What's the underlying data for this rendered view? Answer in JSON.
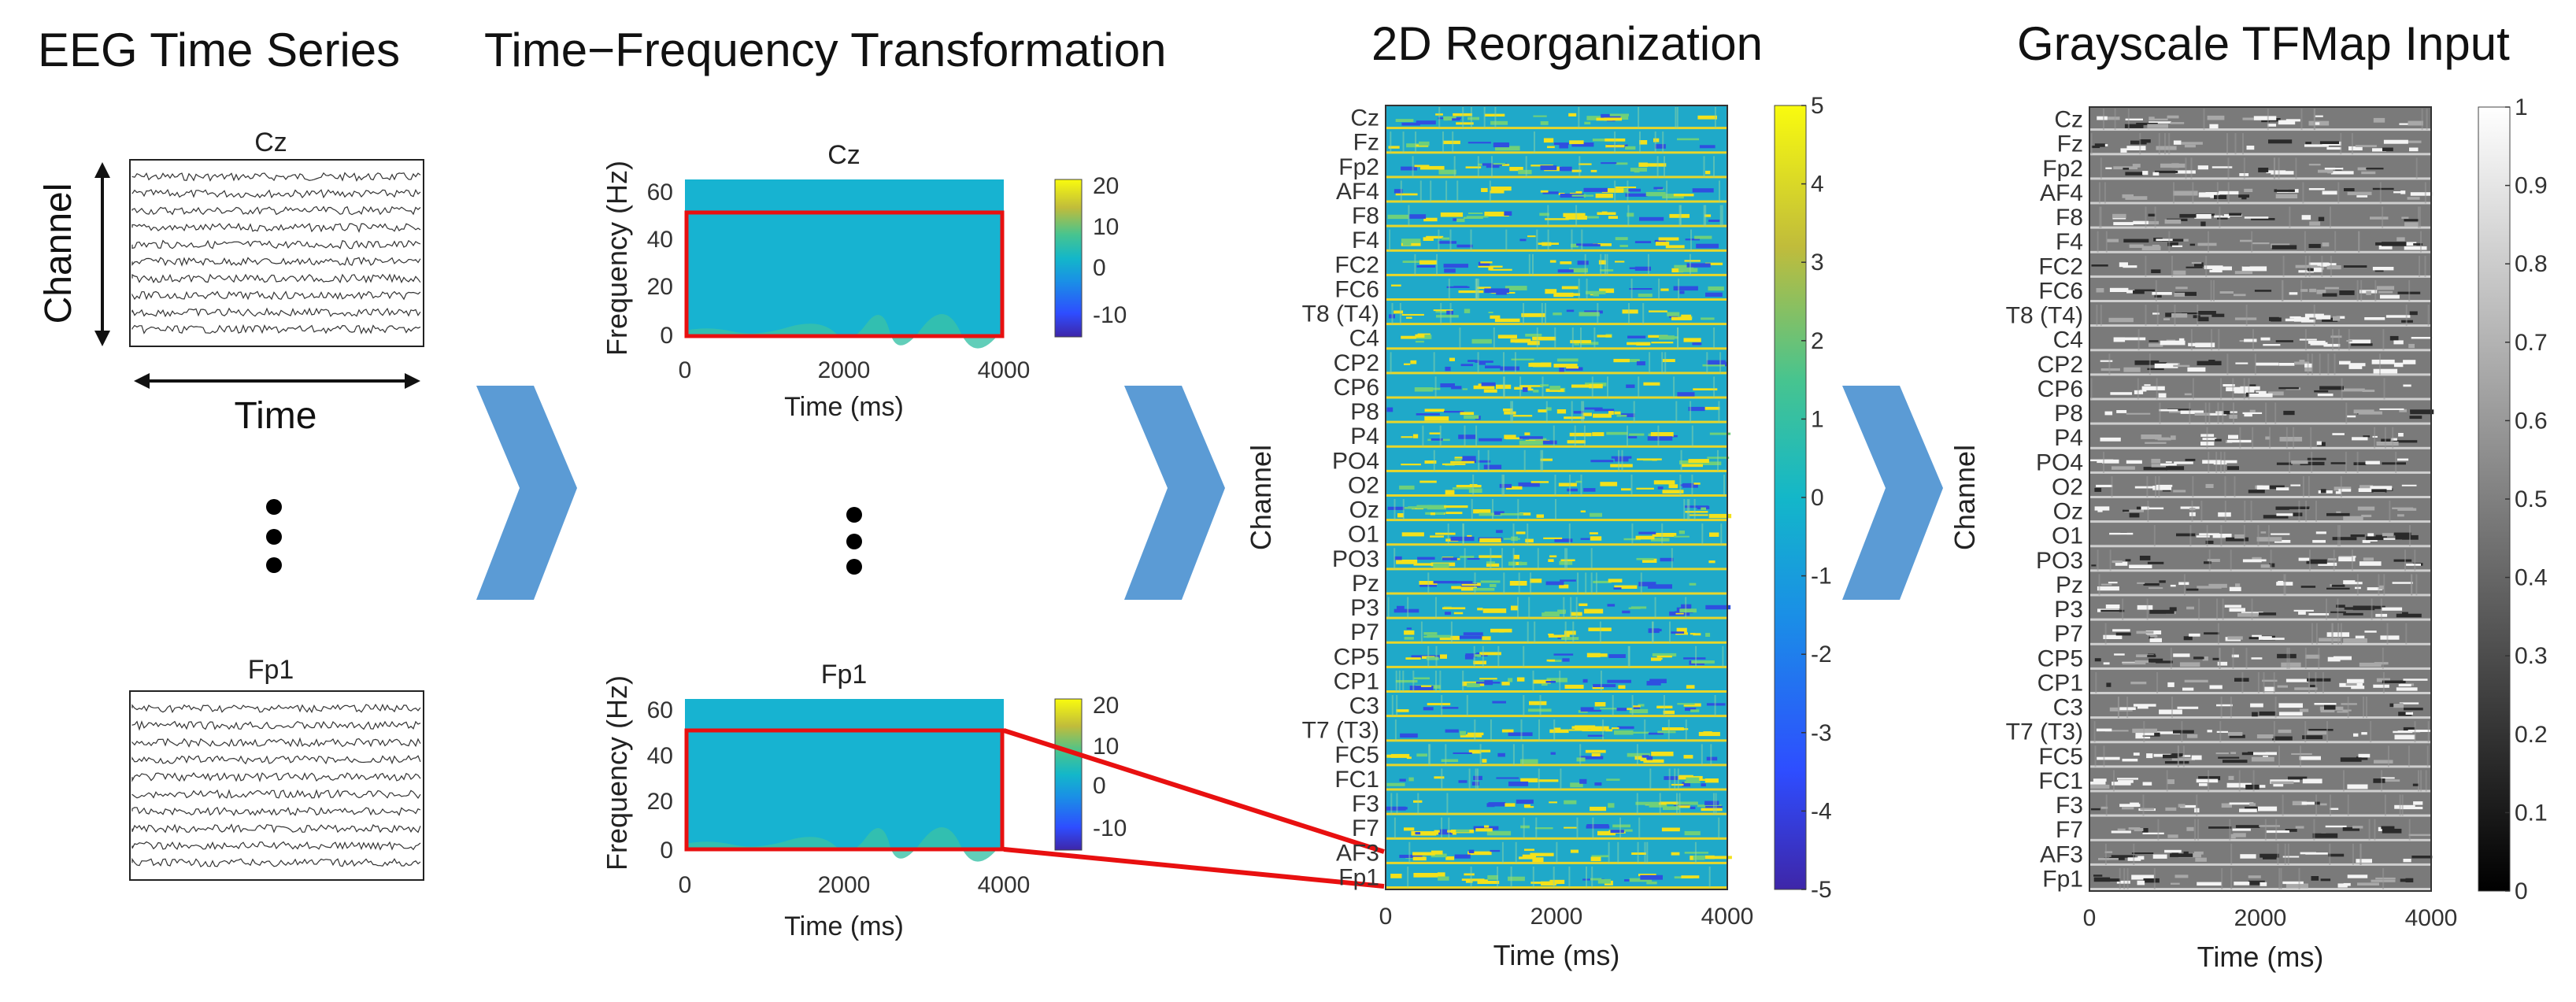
{
  "titles": {
    "eeg": "EEG Time Series",
    "tf": "Time−Frequency Transformation",
    "reorg": "2D Reorganization",
    "gray": "Grayscale TFMap Input"
  },
  "eeg_panel": {
    "channel_label": "Channel",
    "time_label": "Time",
    "top_title": "Cz",
    "bottom_title": "Fp1",
    "trace_count": 10
  },
  "tf_panels": [
    {
      "title": "Cz",
      "ylabel": "Frequency (Hz)",
      "xlabel": "Time (ms)",
      "yticks": [
        "60",
        "40",
        "20",
        "0"
      ],
      "xticks": [
        "0",
        "2000",
        "4000"
      ],
      "cticks": [
        "20",
        "10",
        "0",
        "-10"
      ]
    },
    {
      "title": "Fp1",
      "ylabel": "Frequency (Hz)",
      "xlabel": "Time (ms)",
      "yticks": [
        "60",
        "40",
        "20",
        "0"
      ],
      "xticks": [
        "0",
        "2000",
        "4000"
      ],
      "cticks": [
        "20",
        "10",
        "0",
        "-10"
      ]
    }
  ],
  "reorg_panel": {
    "ylabel": "Channel",
    "xlabel": "Time (ms)",
    "xticks": [
      "0",
      "2000",
      "4000"
    ],
    "cticks": [
      "5",
      "4",
      "3",
      "2",
      "1",
      "0",
      "-1",
      "-2",
      "-3",
      "-4",
      "-5"
    ]
  },
  "gray_panel": {
    "ylabel": "Channel",
    "xlabel": "Time (ms)",
    "xticks": [
      "0",
      "2000",
      "4000"
    ],
    "cticks": [
      "1",
      "0.9",
      "0.8",
      "0.7",
      "0.6",
      "0.5",
      "0.4",
      "0.3",
      "0.2",
      "0.1",
      "0"
    ]
  },
  "channels": [
    "Cz",
    "Fz",
    "Fp2",
    "AF4",
    "F8",
    "F4",
    "FC2",
    "FC6",
    "T8 (T4)",
    "C4",
    "CP2",
    "CP6",
    "P8",
    "P4",
    "PO4",
    "O2",
    "Oz",
    "O1",
    "PO3",
    "Pz",
    "P3",
    "P7",
    "CP5",
    "CP1",
    "C3",
    "T7 (T3)",
    "FC5",
    "FC1",
    "F3",
    "F7",
    "AF3",
    "Fp1"
  ],
  "colors": {
    "arrow": "#5b9bd5",
    "highlight": "#e81010",
    "tf_fill": "#17b3d1",
    "reorg_base": "#1fa9c9"
  }
}
